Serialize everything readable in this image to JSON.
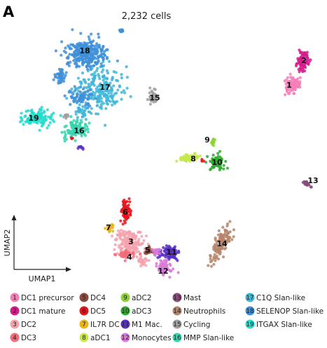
{
  "panel_letter": "A",
  "chart_data": {
    "type": "scatter",
    "title": "2,232 cells",
    "xlabel": "UMAP1",
    "ylabel": "UMAP2",
    "grid": false,
    "legend_position": "bottom",
    "clusters": [
      {
        "id": "1",
        "name": "DC1 precursor",
        "color": "#f47fb6",
        "x": 9.1,
        "y": 7.8
      },
      {
        "id": "2",
        "name": "DC1 mature",
        "color": "#d41c8c",
        "x": 9.4,
        "y": 8.6
      },
      {
        "id": "3",
        "name": "DC2",
        "color": "#f4a3ae",
        "x": 3.5,
        "y": 1.2
      },
      {
        "id": "4",
        "name": "DC3",
        "color": "#f16d79",
        "x": 3.5,
        "y": 0.8
      },
      {
        "id": "5",
        "name": "DC4",
        "color": "#8b4a3d",
        "x": 4.3,
        "y": 1.2
      },
      {
        "id": "6",
        "name": "DC5",
        "color": "#e4161c",
        "x": 3.4,
        "y": 2.2
      },
      {
        "id": "7",
        "name": "IL7R DC",
        "color": "#e9b41e",
        "x": 3.0,
        "y": 1.7
      },
      {
        "id": "8",
        "name": "aDC1",
        "color": "#c6e84a",
        "x": 5.7,
        "y": 4.4
      },
      {
        "id": "9",
        "name": "aDC2",
        "color": "#8ed13b",
        "x": 6.2,
        "y": 4.9
      },
      {
        "id": "10",
        "name": "aDC3",
        "color": "#2bab2e",
        "x": 6.6,
        "y": 4.3
      },
      {
        "id": "11",
        "name": "M1 Mac.",
        "color": "#5a2fc4",
        "x": 5.0,
        "y": 1.1
      },
      {
        "id": "12",
        "name": "Monocytes",
        "color": "#d77ad7",
        "x": 4.8,
        "y": 0.6
      },
      {
        "id": "13",
        "name": "Mast",
        "color": "#8a4a7a",
        "x": 9.4,
        "y": 3.6
      },
      {
        "id": "14",
        "name": "Neutrophils",
        "color": "#b5856b",
        "x": 6.9,
        "y": 1.4
      },
      {
        "id": "15",
        "name": "Cycling",
        "color": "#a0a0a0",
        "x": 4.6,
        "y": 7.4
      },
      {
        "id": "16",
        "name": "MMP Slan-like",
        "color": "#34d3ae",
        "x": 1.8,
        "y": 6.1
      },
      {
        "id": "17",
        "name": "C1Q Slan-like",
        "color": "#3fb6d8",
        "x": 2.8,
        "y": 7.7
      },
      {
        "id": "18",
        "name": "SELENOP Slan-like",
        "color": "#3f8fd8",
        "x": 2.2,
        "y": 8.8
      },
      {
        "id": "19",
        "name": "ITGAX Slan-like",
        "color": "#22dccc",
        "x": 0.7,
        "y": 6.5
      }
    ]
  }
}
